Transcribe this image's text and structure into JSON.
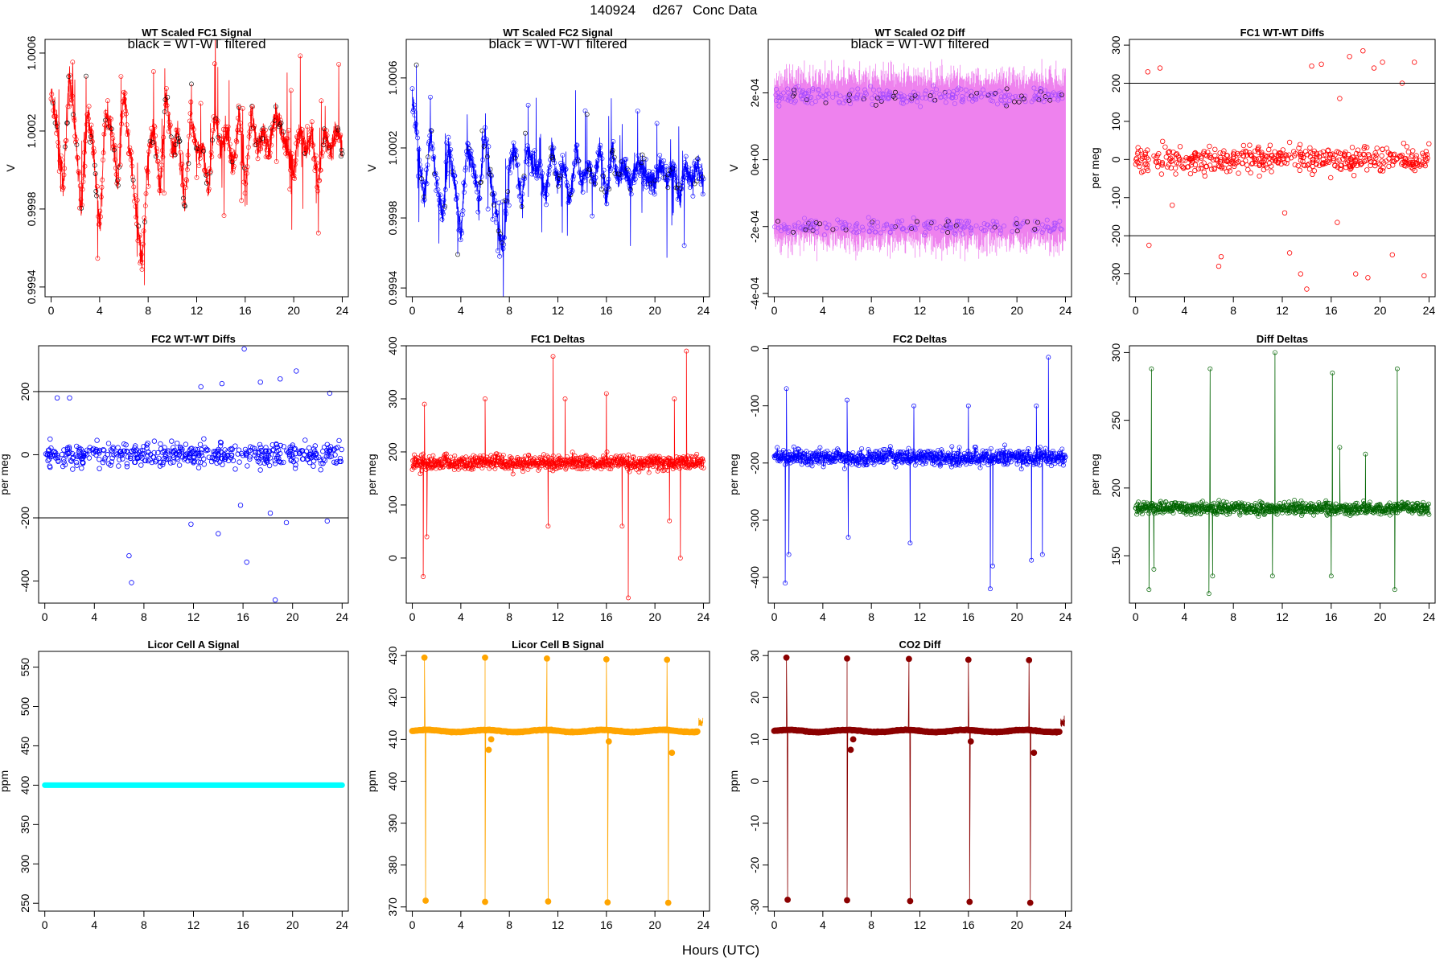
{
  "figure": {
    "title_date": "140924",
    "title_day": "d267",
    "title_label": "Conc Data",
    "xlabel": "Hours (UTC)"
  },
  "chart_data": [
    {
      "id": "fc1sig",
      "type": "line",
      "title": "WT Scaled FC1 Signal",
      "annotation": "black = WT-WT filtered",
      "ylabel": "V",
      "color": "#ff0000",
      "xlim": [
        -0.5,
        24.5
      ],
      "ylim": [
        0.99935,
        1.00067
      ],
      "xticks": [
        0,
        4,
        8,
        12,
        16,
        20,
        24
      ],
      "xtick_labels": [
        "0",
        "4",
        "8",
        "12",
        "16",
        "20",
        "24"
      ],
      "yticks": [
        0.9994,
        0.9998,
        1.0002,
        1.0006
      ],
      "ytick_labels": [
        "0.9994",
        "0.9998",
        "1.0002",
        "1.0006"
      ],
      "x": [
        0,
        0.5,
        1,
        1.5,
        2,
        2.5,
        3,
        3.5,
        4,
        4.5,
        5,
        5.5,
        6,
        6.5,
        7,
        7.5,
        8,
        8.5,
        9,
        9.5,
        10,
        10.5,
        11,
        11.5,
        12,
        12.5,
        13,
        13.5,
        14,
        14.5,
        15,
        15.5,
        16,
        16.5,
        17,
        17.5,
        18,
        18.5,
        19,
        19.5,
        20,
        20.5,
        21,
        21.5,
        22,
        22.5,
        23,
        23.5,
        24
      ],
      "y": [
        1.0004,
        1.0002,
        0.9999,
        1.0005,
        1.0002,
        0.9998,
        1.0003,
        1.0001,
        0.9997,
        1.0003,
        1.0002,
        0.9999,
        1.0004,
        1.0001,
        0.9998,
        0.9995,
        1.0001,
        1.0002,
        0.9999,
        1.0004,
        1.0001,
        1.0002,
        0.9998,
        1.0003,
        1.0001,
        1.0001,
        0.9999,
        1.0003,
        1.0001,
        1.0002,
        1.0,
        1.0003,
        0.9999,
        1.0003,
        1.0001,
        1.0002,
        1.0001,
        1.0003,
        1.0002,
        1.0001,
        1.0,
        1.0002,
        1.0001,
        1.0002,
        0.9999,
        1.0002,
        1.0001,
        1.0002,
        1.0001
      ]
    },
    {
      "id": "fc2sig",
      "type": "line",
      "title": "WT Scaled FC2 Signal",
      "annotation": "black = WT-WT filtered",
      "ylabel": "V",
      "color": "#0000ff",
      "xlim": [
        -0.5,
        24.5
      ],
      "ylim": [
        0.99935,
        1.00082
      ],
      "xticks": [
        0,
        4,
        8,
        12,
        16,
        20,
        24
      ],
      "xtick_labels": [
        "0",
        "4",
        "8",
        "12",
        "16",
        "20",
        "24"
      ],
      "yticks": [
        0.9994,
        0.9998,
        1.0002,
        1.0006
      ],
      "ytick_labels": [
        "0.9994",
        "0.9998",
        "1.0002",
        "1.0006"
      ],
      "x": [
        0,
        0.5,
        1,
        1.5,
        2,
        2.5,
        3,
        3.5,
        4,
        4.5,
        5,
        5.5,
        6,
        6.5,
        7,
        7.5,
        8,
        8.5,
        9,
        9.5,
        10,
        10.5,
        11,
        11.5,
        12,
        12.5,
        13,
        13.5,
        14,
        14.5,
        15,
        15.5,
        16,
        16.5,
        17,
        17.5,
        18,
        18.5,
        19,
        19.5,
        20,
        20.5,
        21,
        21.5,
        22,
        22.5,
        23,
        23.5,
        24
      ],
      "y": [
        1.0005,
        1.0002,
        0.9999,
        1.0003,
        1.0,
        0.9998,
        1.0002,
        1.0,
        0.9997,
        1.0002,
        1.0001,
        0.9999,
        1.0003,
        1.0,
        0.9998,
        0.9996,
        1.0001,
        1.0002,
        0.9999,
        1.0002,
        1.0001,
        1.0001,
        0.9999,
        1.0002,
        1.0,
        1.0001,
        0.9999,
        1.0002,
        1.0,
        1.0001,
        1.0,
        1.0002,
        0.9999,
        1.0002,
        1.0,
        1.0001,
        1.0,
        1.0001,
        1.0001,
        1.0,
        1.0,
        1.0001,
        1.0,
        1.0001,
        0.9999,
        1.0001,
        1.0,
        1.0001,
        1.0
      ]
    },
    {
      "id": "o2diff",
      "type": "scatter",
      "title": "WT Scaled O2 Diff",
      "annotation": "black = WT-WT filtered",
      "ylabel": "V",
      "color": "#a64dff",
      "band_color": "#ee82ee",
      "xlim": [
        -0.5,
        24.5
      ],
      "ylim": [
        -0.00041,
        0.00036
      ],
      "xticks": [
        0,
        4,
        8,
        12,
        16,
        20,
        24
      ],
      "xtick_labels": [
        "0",
        "4",
        "8",
        "12",
        "16",
        "20",
        "24"
      ],
      "yticks": [
        -0.0004,
        -0.0002,
        0,
        0.0002
      ],
      "ytick_labels": [
        "-4e-04",
        "-2e-04",
        "0e+00",
        "2e-04"
      ],
      "band": [
        -0.00021,
        0.00021
      ],
      "upper_level": 0.00019,
      "lower_level": -0.0002
    },
    {
      "id": "fc1wt",
      "type": "scatter",
      "title": "FC1 WT-WT Diffs",
      "ylabel": "per meg",
      "color": "#ff0000",
      "xlim": [
        -0.5,
        24.5
      ],
      "ylim": [
        -360,
        315
      ],
      "xticks": [
        0,
        4,
        8,
        12,
        16,
        20,
        24
      ],
      "xtick_labels": [
        "0",
        "4",
        "8",
        "12",
        "16",
        "20",
        "24"
      ],
      "yticks": [
        -300,
        -200,
        -100,
        0,
        100,
        200,
        300
      ],
      "ytick_labels": [
        "-300",
        "-200",
        "-100",
        "0",
        "100",
        "200",
        "300"
      ],
      "hlines": [
        200,
        -200
      ],
      "outliers": [
        [
          1,
          230
        ],
        [
          2,
          240
        ],
        [
          1.1,
          -225
        ],
        [
          7,
          -255
        ],
        [
          6.8,
          -280
        ],
        [
          14,
          -340
        ],
        [
          13.5,
          -300
        ],
        [
          12.6,
          -245
        ],
        [
          15.2,
          250
        ],
        [
          14.4,
          245
        ],
        [
          16.7,
          160
        ],
        [
          17.5,
          270
        ],
        [
          18.6,
          285
        ],
        [
          19.5,
          240
        ],
        [
          20.2,
          255
        ],
        [
          21.8,
          200
        ],
        [
          18,
          -300
        ],
        [
          19,
          -310
        ],
        [
          21,
          -250
        ],
        [
          22.8,
          255
        ],
        [
          23.6,
          -305
        ],
        [
          16.5,
          -165
        ],
        [
          12.2,
          -140
        ],
        [
          3,
          -120
        ]
      ]
    },
    {
      "id": "fc2wt",
      "type": "scatter",
      "title": "FC2 WT-WT Diffs",
      "ylabel": "per meg",
      "color": "#0000ff",
      "xlim": [
        -0.5,
        24.5
      ],
      "ylim": [
        -470,
        345
      ],
      "xticks": [
        0,
        4,
        8,
        12,
        16,
        20,
        24
      ],
      "xtick_labels": [
        "0",
        "4",
        "8",
        "12",
        "16",
        "20",
        "24"
      ],
      "yticks": [
        -400,
        -200,
        0,
        200
      ],
      "ytick_labels": [
        "-400",
        "-200",
        "0",
        "200"
      ],
      "hlines": [
        200,
        -200
      ],
      "outliers": [
        [
          6.8,
          -320
        ],
        [
          7,
          -405
        ],
        [
          12.6,
          215
        ],
        [
          14,
          -250
        ],
        [
          14.3,
          225
        ],
        [
          16.1,
          335
        ],
        [
          16.3,
          -340
        ],
        [
          17.4,
          230
        ],
        [
          18.6,
          -460
        ],
        [
          19,
          240
        ],
        [
          20.3,
          265
        ],
        [
          22.8,
          -210
        ],
        [
          23,
          195
        ],
        [
          11.8,
          -220
        ],
        [
          15.8,
          -160
        ],
        [
          18.2,
          -185
        ],
        [
          19.5,
          -215
        ],
        [
          1,
          180
        ],
        [
          2,
          180
        ]
      ]
    },
    {
      "id": "fc1d",
      "type": "line",
      "title": "FC1 Deltas",
      "ylabel": "per meg",
      "color": "#ff0000",
      "xlim": [
        -0.5,
        24.5
      ],
      "ylim": [
        -85,
        400
      ],
      "xticks": [
        0,
        4,
        8,
        12,
        16,
        20,
        24
      ],
      "xtick_labels": [
        "0",
        "4",
        "8",
        "12",
        "16",
        "20",
        "24"
      ],
      "yticks": [
        0,
        100,
        200,
        300,
        400
      ],
      "ytick_labels": [
        "0",
        "100",
        "200",
        "300",
        "400"
      ],
      "base": 180,
      "spikes": [
        [
          0.9,
          -35
        ],
        [
          1.0,
          290
        ],
        [
          1.2,
          40
        ],
        [
          6.0,
          300
        ],
        [
          11.2,
          60
        ],
        [
          11.6,
          380
        ],
        [
          12.6,
          300
        ],
        [
          16.0,
          310
        ],
        [
          17.3,
          60
        ],
        [
          17.8,
          -75
        ],
        [
          21.2,
          70
        ],
        [
          21.6,
          300
        ],
        [
          22.1,
          0
        ],
        [
          22.6,
          390
        ]
      ]
    },
    {
      "id": "fc2d",
      "type": "line",
      "title": "FC2 Deltas",
      "ylabel": "per meg",
      "color": "#0000ff",
      "xlim": [
        -0.5,
        24.5
      ],
      "ylim": [
        -445,
        5
      ],
      "xticks": [
        0,
        4,
        8,
        12,
        16,
        20,
        24
      ],
      "xtick_labels": [
        "0",
        "4",
        "8",
        "12",
        "16",
        "20",
        "24"
      ],
      "yticks": [
        -400,
        -300,
        -200,
        -100,
        0
      ],
      "ytick_labels": [
        "-400",
        "-300",
        "-200",
        "-100",
        "0"
      ],
      "base": -190,
      "spikes": [
        [
          0.9,
          -410
        ],
        [
          1.0,
          -70
        ],
        [
          1.2,
          -360
        ],
        [
          6.0,
          -90
        ],
        [
          6.1,
          -330
        ],
        [
          11.2,
          -340
        ],
        [
          11.5,
          -100
        ],
        [
          16.0,
          -100
        ],
        [
          17.8,
          -420
        ],
        [
          18.0,
          -380
        ],
        [
          21.2,
          -370
        ],
        [
          21.6,
          -100
        ],
        [
          22.6,
          -15
        ],
        [
          22.1,
          -360
        ]
      ]
    },
    {
      "id": "diffd",
      "type": "line",
      "title": "Diff Deltas",
      "ylabel": "per meg",
      "color": "#006400",
      "xlim": [
        -0.5,
        24.5
      ],
      "ylim": [
        115,
        305
      ],
      "xticks": [
        0,
        4,
        8,
        12,
        16,
        20,
        24
      ],
      "xtick_labels": [
        "0",
        "4",
        "8",
        "12",
        "16",
        "20",
        "24"
      ],
      "yticks": [
        150,
        200,
        250,
        300
      ],
      "ytick_labels": [
        "150",
        "200",
        "250",
        "300"
      ],
      "base": 185,
      "spikes": [
        [
          1.1,
          125
        ],
        [
          1.3,
          288
        ],
        [
          1.5,
          140
        ],
        [
          6.0,
          122
        ],
        [
          6.1,
          288
        ],
        [
          6.3,
          135
        ],
        [
          11.2,
          135
        ],
        [
          11.4,
          300
        ],
        [
          16.0,
          135
        ],
        [
          16.1,
          285
        ],
        [
          21.2,
          125
        ],
        [
          21.4,
          288
        ],
        [
          16.7,
          230
        ],
        [
          18.8,
          225
        ]
      ]
    },
    {
      "id": "licA",
      "type": "line",
      "title": "Licor Cell A Signal",
      "ylabel": "ppm",
      "color": "#00ffff",
      "xlim": [
        -0.5,
        24.5
      ],
      "ylim": [
        240,
        570
      ],
      "xticks": [
        0,
        4,
        8,
        12,
        16,
        20,
        24
      ],
      "xtick_labels": [
        "0",
        "4",
        "8",
        "12",
        "16",
        "20",
        "24"
      ],
      "yticks": [
        250,
        300,
        350,
        400,
        450,
        500,
        550
      ],
      "ytick_labels": [
        "250",
        "300",
        "350",
        "400",
        "450",
        "500",
        "550"
      ],
      "value": 400
    },
    {
      "id": "licB",
      "type": "line",
      "title": "Licor Cell B Signal",
      "ylabel": "ppm",
      "color": "#ffa500",
      "xlim": [
        -0.5,
        24.5
      ],
      "ylim": [
        369,
        431
      ],
      "xticks": [
        0,
        4,
        8,
        12,
        16,
        20,
        24
      ],
      "xtick_labels": [
        "0",
        "4",
        "8",
        "12",
        "16",
        "20",
        "24"
      ],
      "yticks": [
        370,
        380,
        390,
        400,
        410,
        420,
        430
      ],
      "ytick_labels": [
        "370",
        "380",
        "390",
        "400",
        "410",
        "420",
        "430"
      ],
      "base": 412,
      "spikes": [
        [
          1.0,
          429.5
        ],
        [
          1.1,
          371.5
        ],
        [
          6.0,
          429.5
        ],
        [
          6.0,
          371.2
        ],
        [
          11.1,
          429.3
        ],
        [
          11.2,
          371.3
        ],
        [
          16.0,
          429.1
        ],
        [
          16.1,
          371.1
        ],
        [
          21.0,
          429.0
        ],
        [
          21.1,
          371.0
        ]
      ],
      "dips": [
        [
          6.3,
          407.5
        ],
        [
          6.5,
          410
        ],
        [
          16.2,
          409.5
        ],
        [
          21.4,
          406.8
        ]
      ]
    },
    {
      "id": "co2",
      "type": "line",
      "title": "CO2 Diff",
      "ylabel": "ppm",
      "color": "#8b0000",
      "xlim": [
        -0.5,
        24.5
      ],
      "ylim": [
        -31,
        31
      ],
      "xticks": [
        0,
        4,
        8,
        12,
        16,
        20,
        24
      ],
      "xtick_labels": [
        "0",
        "4",
        "8",
        "12",
        "16",
        "20",
        "24"
      ],
      "yticks": [
        -30,
        -20,
        -10,
        0,
        10,
        20,
        30
      ],
      "ytick_labels": [
        "-30",
        "-20",
        "-10",
        "0",
        "10",
        "20",
        "30"
      ],
      "base": 12,
      "spikes": [
        [
          1.0,
          29.5
        ],
        [
          1.1,
          -28.3
        ],
        [
          6.0,
          29.3
        ],
        [
          6.0,
          -28.4
        ],
        [
          11.1,
          29.2
        ],
        [
          11.2,
          -28.6
        ],
        [
          16.0,
          29.0
        ],
        [
          16.1,
          -28.8
        ],
        [
          21.0,
          28.9
        ],
        [
          21.1,
          -29.0
        ]
      ],
      "dips": [
        [
          6.3,
          7.5
        ],
        [
          6.5,
          10
        ],
        [
          16.2,
          9.5
        ],
        [
          21.4,
          6.8
        ]
      ]
    }
  ]
}
